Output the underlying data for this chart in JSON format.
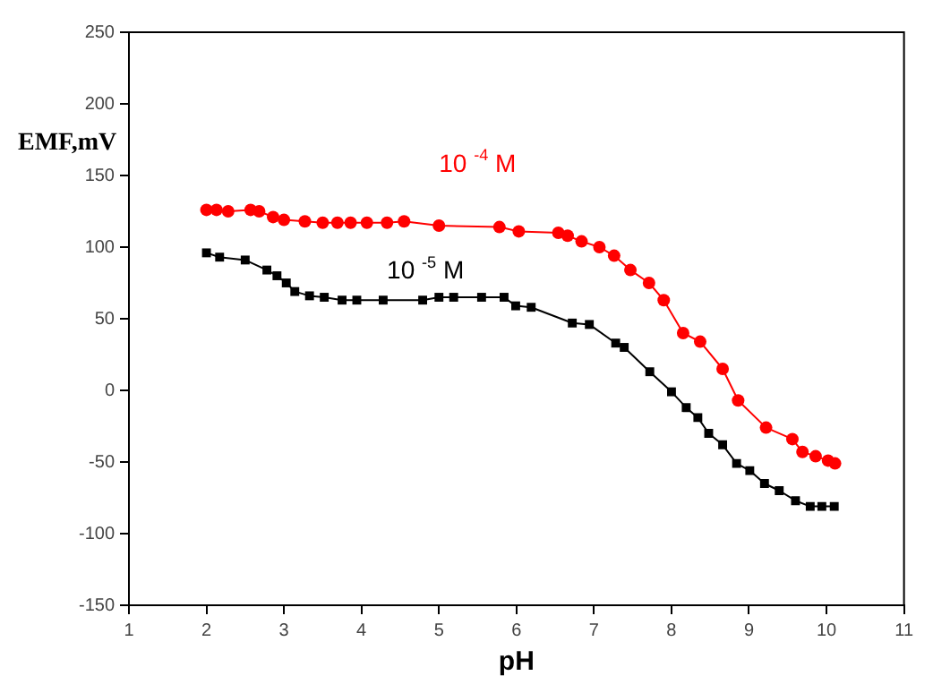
{
  "chart_data": {
    "type": "line",
    "xlabel": "pH",
    "ylabel": "EMF,mV",
    "xlim": [
      1,
      11
    ],
    "xticks": [
      1,
      2,
      3,
      4,
      5,
      6,
      7,
      8,
      9,
      10,
      11
    ],
    "ylim": [
      -150,
      250
    ],
    "yticks": [
      -150,
      -100,
      -50,
      0,
      50,
      100,
      150,
      200,
      250
    ],
    "grid": false,
    "legend": false,
    "line_style": "solid",
    "series": [
      {
        "name": "10 $^{-4}$ M",
        "color": "#ff0000",
        "marker": "circle",
        "x": [
          2.0,
          2.13,
          2.28,
          2.57,
          2.68,
          2.86,
          3.0,
          3.27,
          3.5,
          3.69,
          3.86,
          4.07,
          4.33,
          4.55,
          5.0,
          5.78,
          6.03,
          6.54,
          6.66,
          6.84,
          7.07,
          7.26,
          7.47,
          7.71,
          7.9,
          8.15,
          8.37,
          8.66,
          8.86,
          9.22,
          9.56,
          9.69,
          9.86,
          10.02,
          10.11
        ],
        "values": [
          126,
          126,
          125,
          126,
          125,
          121,
          119,
          118,
          117,
          117,
          117,
          117,
          117,
          118,
          115,
          114,
          111,
          110,
          108,
          104,
          100,
          94,
          84,
          75,
          63,
          40,
          34,
          15,
          -7,
          -26,
          -34,
          -43,
          -46,
          -49,
          -51
        ]
      },
      {
        "name": "10 $^{-5}$ M",
        "color": "#000000",
        "marker": "square",
        "x": [
          2.0,
          2.17,
          2.5,
          2.78,
          2.91,
          3.03,
          3.14,
          3.33,
          3.52,
          3.75,
          3.94,
          4.28,
          4.79,
          5.0,
          5.19,
          5.55,
          5.84,
          5.99,
          6.19,
          6.72,
          6.94,
          7.28,
          7.39,
          7.72,
          8.0,
          8.19,
          8.34,
          8.48,
          8.66,
          8.84,
          9.01,
          9.2,
          9.39,
          9.6,
          9.79,
          9.94,
          10.1
        ],
        "values": [
          96,
          93,
          91,
          84,
          80,
          75,
          69,
          66,
          65,
          63,
          63,
          63,
          63,
          65,
          65,
          65,
          65,
          59,
          58,
          47,
          46,
          33,
          30,
          13,
          -1,
          -12,
          -19,
          -30,
          -38,
          -51,
          -56,
          -65,
          -70,
          -77,
          -81,
          -81,
          -81
        ]
      }
    ]
  }
}
